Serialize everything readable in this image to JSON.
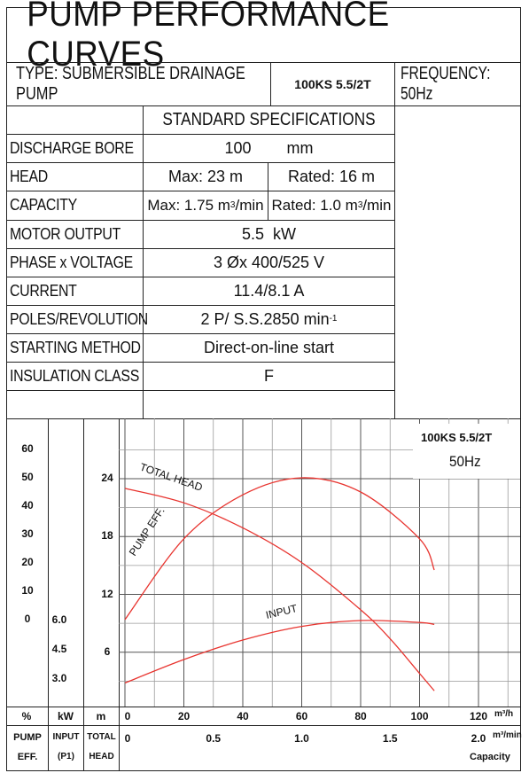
{
  "title": "PUMP PERFORMANCE CURVES",
  "header": {
    "type": "TYPE: SUBMERSIBLE  DRAINAGE  PUMP",
    "model": "100KS 5.5/2T",
    "frequency": "FREQUENCY: 50Hz"
  },
  "specs": {
    "heading": "STANDARD SPECIFICATIONS",
    "rows": [
      {
        "label": "DISCHARGE BORE",
        "value": "100        mm"
      },
      {
        "label": "HEAD",
        "value_max": "Max: 23 m",
        "value_rated": "Rated: 16 m"
      },
      {
        "label": "CAPACITY",
        "value_max": "Max: 1.75 m",
        "value_max_unit": "3",
        "value_max_tail": "/min",
        "value_rated": "Rated: 1.0 m",
        "value_rated_unit": "3",
        "value_rated_tail": "/min"
      },
      {
        "label": "MOTOR OUTPUT",
        "value": "5.5  kW"
      },
      {
        "label": "PHASE x VOLTAGE",
        "value": "3 Øx 400/525 V"
      },
      {
        "label": "CURRENT",
        "value": "11.4/8.1 A"
      },
      {
        "label": "POLES/REVOLUTION",
        "value": "2 P/ S.S.2850 min",
        "value_sup": "-1"
      },
      {
        "label": "STARTING METHOD",
        "value": "Direct-on-line start"
      },
      {
        "label": "INSULATION CLASS",
        "value": "F"
      }
    ]
  },
  "chart_labels": {
    "model": "100KS 5.5/2T",
    "freq": "50Hz",
    "col_units": [
      "%",
      "kW",
      "m"
    ],
    "col_titles": [
      [
        "PUMP",
        "EFF."
      ],
      [
        "INPUT",
        "(P1)"
      ],
      [
        "TOTAL",
        "HEAD"
      ]
    ],
    "x1_unit": "m³/h",
    "x2_unit": "m³/min",
    "x2_caption": "Capacity"
  },
  "chart_data": {
    "type": "line",
    "x1_ticks": [
      "0",
      "20",
      "40",
      "60",
      "80",
      "100",
      "120"
    ],
    "x1_range": [
      0,
      130
    ],
    "x2_ticks": [
      "0",
      "0.5",
      "1.0",
      "1.5",
      "2.0"
    ],
    "eff_ticks": [
      "60",
      "50",
      "40",
      "30",
      "20",
      "10",
      "0"
    ],
    "input_ticks": [
      "6.0",
      "4.5",
      "3.0"
    ],
    "head_ticks": [
      "24",
      "18",
      "12",
      "6"
    ],
    "head_range": [
      0,
      24
    ],
    "series": [
      {
        "name": "TOTAL HEAD",
        "unit": "m",
        "x": [
          0,
          20,
          40,
          60,
          80,
          90,
          100,
          105
        ],
        "y": [
          23.0,
          21.5,
          18.9,
          15.3,
          10.4,
          7.4,
          3.8,
          2.0
        ]
      },
      {
        "name": "PUMP EFF.",
        "unit": "%",
        "x": [
          0,
          20,
          40,
          60,
          80,
          100,
          105
        ],
        "y": [
          0,
          28.5,
          44,
          50,
          45,
          28.5,
          17.5
        ]
      },
      {
        "name": "INPUT",
        "unit": "kW",
        "x": [
          0,
          20,
          40,
          60,
          80,
          100,
          105
        ],
        "y": [
          2.8,
          4.0,
          5.0,
          5.7,
          6.0,
          5.9,
          5.8
        ]
      }
    ],
    "curve_color": "#e8342f"
  }
}
